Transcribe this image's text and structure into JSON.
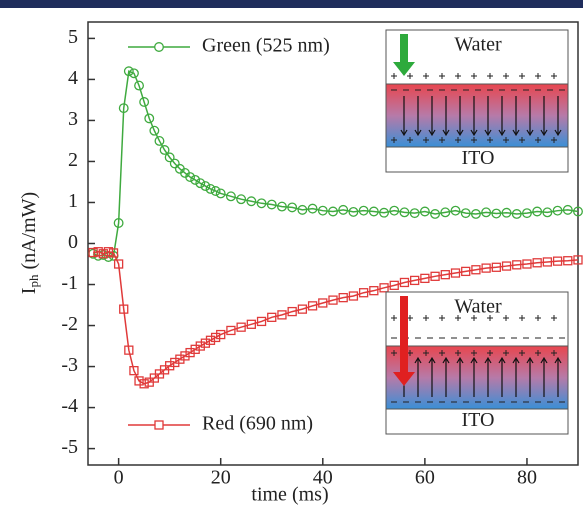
{
  "chart_data": {
    "type": "line",
    "xlabel": "time (ms)",
    "ylabel": [
      "I",
      "ph",
      " (nA/mW)"
    ],
    "xlim": [
      -6,
      90
    ],
    "xticks": [
      0,
      20,
      40,
      60,
      80
    ],
    "ylim": [
      -5.4,
      5.4
    ],
    "yticks": [
      -5,
      -4,
      -3,
      -2,
      -1,
      0,
      1,
      2,
      3,
      4,
      5
    ],
    "x": [
      -5,
      -4,
      -3,
      -2,
      -1,
      0,
      1,
      2,
      3,
      4,
      5,
      6,
      7,
      8,
      9,
      10,
      11,
      12,
      13,
      14,
      15,
      16,
      17,
      18,
      19,
      20,
      22,
      24,
      26,
      28,
      30,
      32,
      34,
      36,
      38,
      40,
      42,
      44,
      46,
      48,
      50,
      52,
      54,
      56,
      58,
      60,
      62,
      64,
      66,
      68,
      70,
      72,
      74,
      76,
      78,
      80,
      82,
      84,
      86,
      88,
      90
    ],
    "series": [
      {
        "name": "Green (525 nm)",
        "color": "#3faa3f",
        "marker": "circle",
        "values": [
          -0.25,
          -0.3,
          -0.28,
          -0.33,
          -0.3,
          0.5,
          3.3,
          4.2,
          4.15,
          3.85,
          3.45,
          3.05,
          2.75,
          2.5,
          2.28,
          2.1,
          1.95,
          1.82,
          1.72,
          1.62,
          1.55,
          1.47,
          1.4,
          1.33,
          1.28,
          1.22,
          1.15,
          1.08,
          1.03,
          0.98,
          0.95,
          0.9,
          0.88,
          0.82,
          0.85,
          0.8,
          0.78,
          0.82,
          0.77,
          0.8,
          0.78,
          0.75,
          0.8,
          0.76,
          0.74,
          0.78,
          0.72,
          0.76,
          0.8,
          0.74,
          0.72,
          0.76,
          0.73,
          0.75,
          0.72,
          0.74,
          0.78,
          0.76,
          0.8,
          0.82,
          0.78
        ]
      },
      {
        "name": "Red (690 nm)",
        "color": "#e03a3a",
        "marker": "square",
        "values": [
          -0.22,
          -0.2,
          -0.25,
          -0.2,
          -0.23,
          -0.5,
          -1.6,
          -2.6,
          -3.1,
          -3.35,
          -3.42,
          -3.38,
          -3.28,
          -3.18,
          -3.08,
          -2.98,
          -2.9,
          -2.82,
          -2.74,
          -2.66,
          -2.58,
          -2.5,
          -2.43,
          -2.36,
          -2.29,
          -2.22,
          -2.12,
          -2.04,
          -1.97,
          -1.9,
          -1.8,
          -1.74,
          -1.66,
          -1.6,
          -1.52,
          -1.45,
          -1.38,
          -1.32,
          -1.28,
          -1.2,
          -1.15,
          -1.08,
          -1.02,
          -0.95,
          -0.9,
          -0.85,
          -0.8,
          -0.76,
          -0.72,
          -0.68,
          -0.64,
          -0.6,
          -0.58,
          -0.55,
          -0.52,
          -0.5,
          -0.47,
          -0.45,
          -0.43,
          -0.42,
          -0.4
        ]
      }
    ],
    "insets": [
      {
        "medium": "Water",
        "electrode": "ITO",
        "arrow_color": "#2eaa3c",
        "field": "down"
      },
      {
        "medium": "Water",
        "electrode": "ITO",
        "arrow_color": "#e02020",
        "field": "up"
      }
    ]
  }
}
